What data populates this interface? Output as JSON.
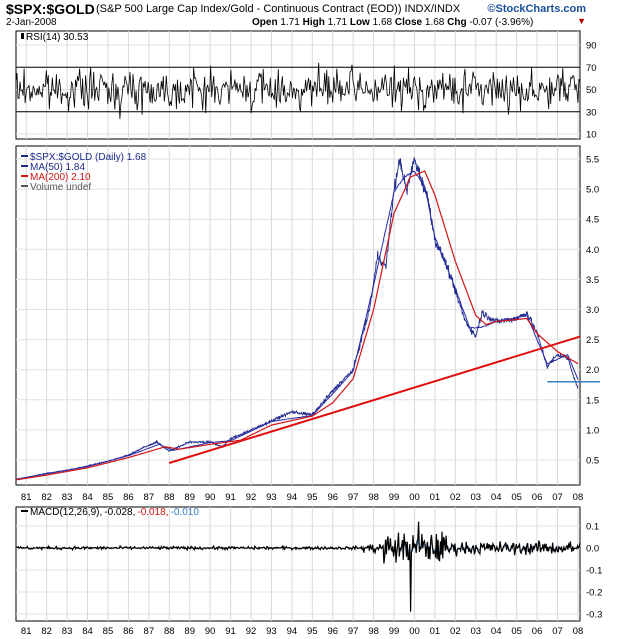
{
  "header": {
    "symbol": "$SPX:$GOLD",
    "description": "(S&P 500 Large Cap Index/Gold - Continuous Contract (EOD)) INDX/INDX",
    "brand": "©StockCharts.com",
    "date": "2-Jan-2008",
    "open_label": "Open",
    "open": "1.71",
    "high_label": "High",
    "high": "1.71",
    "low_label": "Low",
    "low": "1.68",
    "close_label": "Close",
    "close": "1.68",
    "chg_label": "Chg",
    "chg": "-0.07 (-3.96%)"
  },
  "colors": {
    "price": "#1e2a8c",
    "ma200": "#d21414",
    "trend": "#e01010",
    "support": "#3a7fc1",
    "signal_blue": "#3a7fc1"
  },
  "chart_data": [
    {
      "type": "line",
      "name": "rsi_panel",
      "legend": "RSI(14) 30.53",
      "ylim": [
        0,
        100
      ],
      "yticks": [
        10,
        30,
        50,
        70,
        90
      ],
      "reference_lines": [
        30,
        70
      ],
      "x_range": [
        1980.5,
        2008.1
      ],
      "approx_mean": 50,
      "approx_range": [
        12,
        86
      ]
    },
    {
      "type": "line",
      "name": "price_panel",
      "legend": [
        "$SPX:$GOLD (Daily) 1.68",
        "MA(50) 1.84",
        "MA(200) 2.10",
        "Volume undef"
      ],
      "ylim": [
        0.1,
        5.75
      ],
      "yticks": [
        0.5,
        1.0,
        1.5,
        2.0,
        2.5,
        3.0,
        3.5,
        4.0,
        4.5,
        5.0,
        5.5
      ],
      "xticks": [
        "81",
        "82",
        "83",
        "84",
        "85",
        "86",
        "87",
        "88",
        "89",
        "90",
        "91",
        "92",
        "93",
        "94",
        "95",
        "96",
        "97",
        "98",
        "99",
        "00",
        "01",
        "02",
        "03",
        "04",
        "05",
        "06",
        "07",
        "08"
      ],
      "x_range": [
        1980.5,
        2008.1
      ],
      "series": [
        {
          "name": "$SPX:$GOLD",
          "x": [
            1980.5,
            1981,
            1982,
            1983,
            1984,
            1985,
            1986,
            1986.8,
            1987.4,
            1988,
            1989,
            1990,
            1990.6,
            1991,
            1992,
            1993,
            1994,
            1995,
            1996,
            1997,
            1997.8,
            1998.2,
            1998.6,
            1999,
            1999.3,
            1999.6,
            2000,
            2000.3,
            2000.7,
            2001,
            2001.5,
            2002,
            2002.5,
            2003,
            2003.3,
            2004,
            2005,
            2005.5,
            2006,
            2006.5,
            2007,
            2007.5,
            2008
          ],
          "values": [
            0.18,
            0.21,
            0.28,
            0.33,
            0.4,
            0.48,
            0.58,
            0.72,
            0.8,
            0.65,
            0.8,
            0.8,
            0.72,
            0.85,
            1.0,
            1.15,
            1.3,
            1.25,
            1.65,
            2.0,
            3.0,
            3.9,
            3.7,
            5.0,
            5.5,
            4.95,
            5.5,
            5.2,
            4.8,
            4.15,
            3.8,
            3.3,
            2.8,
            2.55,
            2.95,
            2.8,
            2.85,
            2.95,
            2.6,
            2.05,
            2.25,
            2.2,
            1.68
          ]
        },
        {
          "name": "MA(50)",
          "x": [
            1980.5,
            1982,
            1984,
            1986,
            1987.5,
            1988.2,
            1990,
            1991,
            1993,
            1995,
            1996,
            1997,
            1998,
            1999,
            1999.5,
            2000,
            2000.5,
            2001,
            2002,
            2002.7,
            2003.2,
            2004,
            2005.5,
            2006.5,
            2007.5,
            2008
          ],
          "values": [
            0.18,
            0.27,
            0.39,
            0.57,
            0.76,
            0.66,
            0.79,
            0.82,
            1.14,
            1.24,
            1.6,
            1.98,
            3.4,
            4.95,
            5.2,
            5.3,
            5.05,
            4.2,
            3.35,
            2.7,
            2.7,
            2.8,
            2.9,
            2.1,
            2.25,
            1.84
          ]
        },
        {
          "name": "MA(200)",
          "x": [
            1980.5,
            1982,
            1984,
            1986,
            1987.8,
            1988.5,
            1990,
            1991.5,
            1993,
            1995,
            1996,
            1997,
            1998,
            1999,
            1999.8,
            2000.5,
            2001,
            2002,
            2003,
            2003.5,
            2004,
            2005.5,
            2006,
            2007,
            2008
          ],
          "values": [
            0.17,
            0.25,
            0.37,
            0.54,
            0.72,
            0.68,
            0.76,
            0.83,
            1.08,
            1.23,
            1.45,
            1.85,
            3.0,
            4.6,
            5.2,
            5.3,
            4.9,
            3.8,
            2.9,
            2.75,
            2.8,
            2.85,
            2.6,
            2.3,
            2.1
          ]
        }
      ],
      "annotations": [
        {
          "type": "trendline",
          "points": [
            [
              1988,
              0.45
            ],
            [
              2008.1,
              2.55
            ]
          ]
        },
        {
          "type": "support",
          "points": [
            [
              2006.5,
              1.8
            ],
            [
              2008.1,
              1.8
            ]
          ]
        }
      ]
    },
    {
      "type": "line",
      "name": "macd_panel",
      "legend": [
        "MACD(12,26,9)",
        "-0.028",
        "-0.018",
        "-0.010"
      ],
      "ylim": [
        -0.33,
        0.17
      ],
      "yticks": [
        0.1,
        0.0,
        -0.1,
        -0.2,
        -0.3
      ],
      "xticks": [
        "81",
        "82",
        "83",
        "84",
        "85",
        "86",
        "87",
        "88",
        "89",
        "90",
        "91",
        "92",
        "93",
        "94",
        "95",
        "96",
        "97",
        "98",
        "99",
        "00",
        "01",
        "02",
        "03",
        "04",
        "05",
        "06",
        "07",
        "08"
      ],
      "x_range": [
        1980.5,
        2008.1
      ],
      "approx_extremes": {
        "max": 0.12,
        "min": -0.29,
        "min_at": 1999.8
      }
    }
  ]
}
